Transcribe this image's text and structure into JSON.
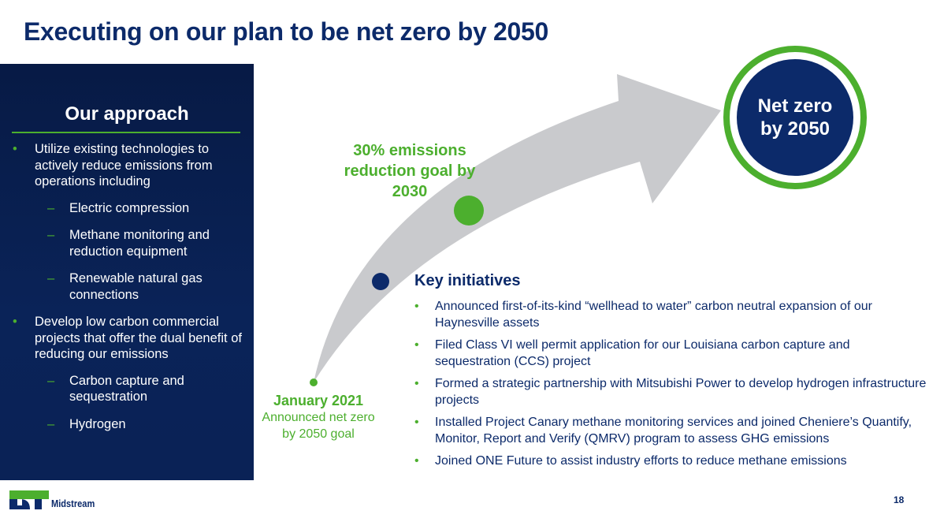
{
  "title": "Executing on our plan to be net zero by 2050",
  "approach": {
    "heading": "Our approach",
    "b1": "Utilize existing technologies to actively reduce emissions from operations including",
    "b1_subs": [
      "Electric compression",
      "Methane monitoring and reduction equipment",
      "Renewable natural gas connections"
    ],
    "b2": "Develop low carbon commercial projects that offer the dual benefit of reducing our emissions",
    "b2_subs": [
      "Carbon capture and sequestration",
      "Hydrogen"
    ]
  },
  "milestones": {
    "start_title": "January 2021",
    "start_text": "Announced net zero by 2050 goal",
    "mid": "30% emissions reduction goal by 2030",
    "end": "Net zero by 2050"
  },
  "initiatives": {
    "heading": "Key initiatives",
    "items": [
      "Announced first-of-its-kind “wellhead to water” carbon neutral expansion of our Haynesville assets",
      "Filed Class VI well permit application for our Louisiana carbon capture and sequestration (CCS) project",
      "Formed a strategic partnership with Mitsubishi Power to develop hydrogen infrastructure projects",
      "Installed Project Canary methane monitoring services and joined Cheniere’s Quantify, Monitor, Report and Verify (QMRV) program to assess GHG emissions",
      "Joined ONE Future to assist industry efforts to reduce methane emissions"
    ]
  },
  "footer": {
    "logo_letters": "DT",
    "logo_text": "Midstream",
    "page": "18"
  },
  "colors": {
    "navy": "#0c2a6a",
    "green": "#4caf2e",
    "arrow": "#c9cacd"
  }
}
